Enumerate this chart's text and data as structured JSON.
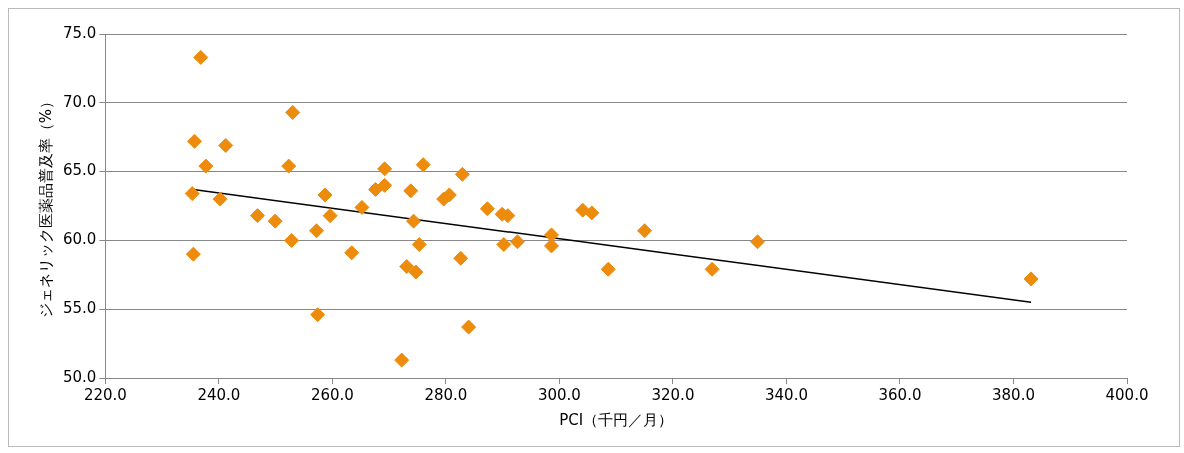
{
  "chart_data": {
    "type": "scatter",
    "xlabel": "PCI（千円／月）",
    "ylabel": "ジェネリック医薬品普及率（%）",
    "xlim": [
      220,
      400
    ],
    "xticks": [
      {
        "value": 220,
        "label": "220.0"
      },
      {
        "value": 240,
        "label": "240.0"
      },
      {
        "value": 260,
        "label": "260.0"
      },
      {
        "value": 280,
        "label": "280.0"
      },
      {
        "value": 300,
        "label": "300.0"
      },
      {
        "value": 320,
        "label": "320.0"
      },
      {
        "value": 340,
        "label": "340.0"
      },
      {
        "value": 360,
        "label": "360.0"
      },
      {
        "value": 380,
        "label": "380.0"
      },
      {
        "value": 400,
        "label": "400.0"
      }
    ],
    "ylim": [
      50,
      75
    ],
    "yticks": [
      {
        "value": 50,
        "label": "50.0"
      },
      {
        "value": 55,
        "label": "55.0"
      },
      {
        "value": 60,
        "label": "60.0"
      },
      {
        "value": 65,
        "label": "65.0"
      },
      {
        "value": 70,
        "label": "70.0"
      },
      {
        "value": 75,
        "label": "75.0"
      }
    ],
    "grid": "y",
    "legend": false,
    "series": [
      {
        "marker": "diamond",
        "color": "#ed8c0c",
        "x": [
          236.8,
          235.7,
          237.7,
          241.2,
          235.3,
          240.2,
          235.5,
          246.8,
          249.9,
          253.0,
          252.3,
          252.8,
          258.7,
          259.6,
          257.2,
          257.4,
          263.4,
          265.2,
          267.6,
          269.2,
          269.2,
          273.8,
          274.3,
          276.0,
          275.3,
          273.1,
          274.7,
          272.2,
          279.6,
          280.6,
          282.9,
          282.6,
          284.0,
          287.3,
          289.9,
          290.9,
          290.2,
          292.6,
          298.6,
          298.6,
          304.1,
          305.7,
          308.6,
          315.0,
          326.9,
          334.9,
          383.1
        ],
        "values": [
          73.3,
          67.2,
          65.4,
          66.9,
          63.4,
          63.0,
          59.0,
          61.8,
          61.4,
          69.3,
          65.4,
          60.0,
          63.3,
          61.8,
          60.7,
          54.6,
          59.1,
          62.4,
          63.7,
          65.2,
          64.0,
          63.6,
          61.4,
          65.5,
          59.7,
          58.1,
          57.7,
          51.3,
          63.0,
          63.3,
          64.8,
          58.7,
          53.7,
          62.3,
          61.9,
          61.8,
          59.7,
          59.9,
          60.4,
          59.6,
          62.2,
          62.0,
          57.9,
          60.7,
          57.9,
          59.9,
          57.2
        ]
      },
      {
        "type": "line",
        "color": "#000000",
        "x": [
          235.5,
          383.1
        ],
        "values": [
          63.7,
          55.5
        ]
      }
    ]
  }
}
